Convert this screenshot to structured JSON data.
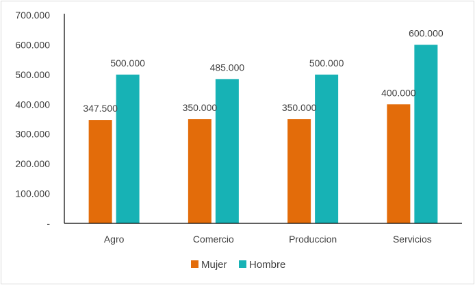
{
  "chart_data": {
    "type": "bar",
    "categories": [
      "Agro",
      "Comercio",
      "Produccion",
      "Servicios"
    ],
    "series": [
      {
        "name": "Mujer",
        "values": [
          347500,
          350000,
          350000,
          400000
        ],
        "labels": [
          "347.500",
          "350.000",
          "350.000",
          "400.000"
        ],
        "color": "#E36C0A"
      },
      {
        "name": "Hombre",
        "values": [
          500000,
          485000,
          500000,
          600000
        ],
        "labels": [
          "500.000",
          "485.000",
          "500.000",
          "600.000"
        ],
        "color": "#17B2B5"
      }
    ],
    "ylim": [
      0,
      700000
    ],
    "yticks": [
      0,
      100000,
      200000,
      300000,
      400000,
      500000,
      600000,
      700000
    ],
    "ytick_labels": [
      "-",
      "100.000",
      "200.000",
      "300.000",
      "400.000",
      "500.000",
      "600.000",
      "700.000"
    ],
    "grid": false,
    "legend_position": "bottom"
  }
}
